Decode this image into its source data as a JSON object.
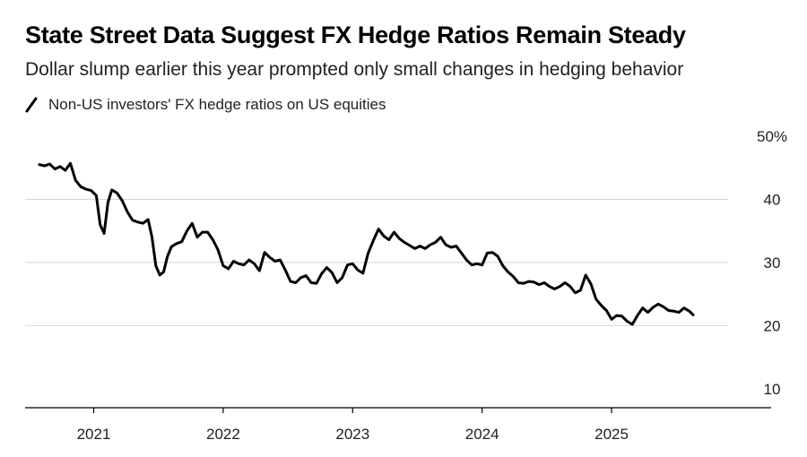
{
  "chart_data": {
    "type": "line",
    "title": "State Street Data Suggest FX Hedge Ratios Remain Steady",
    "subtitle": "Dollar slump earlier this year prompted only small changes in hedging behavior",
    "series": [
      {
        "name": "Non-US investors' FX hedge ratios on US equities",
        "color": "#000000",
        "points": [
          [
            2020.58,
            45.5
          ],
          [
            2020.62,
            45.3
          ],
          [
            2020.66,
            45.6
          ],
          [
            2020.7,
            44.8
          ],
          [
            2020.74,
            45.2
          ],
          [
            2020.78,
            44.6
          ],
          [
            2020.82,
            45.7
          ],
          [
            2020.86,
            43.0
          ],
          [
            2020.9,
            42.0
          ],
          [
            2020.94,
            41.6
          ],
          [
            2020.98,
            41.4
          ],
          [
            2021.02,
            40.6
          ],
          [
            2021.05,
            36.0
          ],
          [
            2021.08,
            34.6
          ],
          [
            2021.11,
            39.5
          ],
          [
            2021.14,
            41.5
          ],
          [
            2021.18,
            41.0
          ],
          [
            2021.22,
            39.8
          ],
          [
            2021.26,
            38.0
          ],
          [
            2021.3,
            36.7
          ],
          [
            2021.34,
            36.4
          ],
          [
            2021.38,
            36.2
          ],
          [
            2021.42,
            36.8
          ],
          [
            2021.45,
            34.0
          ],
          [
            2021.48,
            29.5
          ],
          [
            2021.51,
            28.0
          ],
          [
            2021.54,
            28.5
          ],
          [
            2021.57,
            31.0
          ],
          [
            2021.6,
            32.5
          ],
          [
            2021.64,
            33.0
          ],
          [
            2021.68,
            33.3
          ],
          [
            2021.72,
            35.0
          ],
          [
            2021.76,
            36.2
          ],
          [
            2021.8,
            34.0
          ],
          [
            2021.84,
            34.8
          ],
          [
            2021.88,
            34.8
          ],
          [
            2021.92,
            33.6
          ],
          [
            2021.96,
            32.0
          ],
          [
            2022.0,
            29.5
          ],
          [
            2022.04,
            29.0
          ],
          [
            2022.08,
            30.2
          ],
          [
            2022.12,
            29.8
          ],
          [
            2022.16,
            29.6
          ],
          [
            2022.2,
            30.4
          ],
          [
            2022.24,
            29.8
          ],
          [
            2022.28,
            28.7
          ],
          [
            2022.32,
            31.6
          ],
          [
            2022.36,
            30.8
          ],
          [
            2022.4,
            30.2
          ],
          [
            2022.44,
            30.4
          ],
          [
            2022.48,
            28.8
          ],
          [
            2022.52,
            27.0
          ],
          [
            2022.56,
            26.8
          ],
          [
            2022.6,
            27.6
          ],
          [
            2022.64,
            27.9
          ],
          [
            2022.68,
            26.8
          ],
          [
            2022.72,
            26.7
          ],
          [
            2022.76,
            28.2
          ],
          [
            2022.8,
            29.2
          ],
          [
            2022.84,
            28.4
          ],
          [
            2022.88,
            26.8
          ],
          [
            2022.92,
            27.6
          ],
          [
            2022.96,
            29.6
          ],
          [
            2023.0,
            29.8
          ],
          [
            2023.04,
            28.8
          ],
          [
            2023.08,
            28.3
          ],
          [
            2023.12,
            31.5
          ],
          [
            2023.16,
            33.5
          ],
          [
            2023.2,
            35.3
          ],
          [
            2023.24,
            34.2
          ],
          [
            2023.28,
            33.6
          ],
          [
            2023.32,
            34.8
          ],
          [
            2023.36,
            33.8
          ],
          [
            2023.4,
            33.2
          ],
          [
            2023.44,
            32.7
          ],
          [
            2023.48,
            32.2
          ],
          [
            2023.52,
            32.6
          ],
          [
            2023.56,
            32.2
          ],
          [
            2023.6,
            32.8
          ],
          [
            2023.64,
            33.2
          ],
          [
            2023.68,
            34.0
          ],
          [
            2023.72,
            32.8
          ],
          [
            2023.76,
            32.4
          ],
          [
            2023.8,
            32.6
          ],
          [
            2023.84,
            31.5
          ],
          [
            2023.88,
            30.4
          ],
          [
            2023.92,
            29.6
          ],
          [
            2023.96,
            29.8
          ],
          [
            2024.0,
            29.6
          ],
          [
            2024.04,
            31.5
          ],
          [
            2024.08,
            31.6
          ],
          [
            2024.12,
            31.0
          ],
          [
            2024.16,
            29.5
          ],
          [
            2024.2,
            28.5
          ],
          [
            2024.24,
            27.8
          ],
          [
            2024.28,
            26.8
          ],
          [
            2024.32,
            26.7
          ],
          [
            2024.36,
            27.0
          ],
          [
            2024.4,
            26.9
          ],
          [
            2024.44,
            26.5
          ],
          [
            2024.48,
            26.8
          ],
          [
            2024.52,
            26.2
          ],
          [
            2024.56,
            25.8
          ],
          [
            2024.6,
            26.2
          ],
          [
            2024.64,
            26.8
          ],
          [
            2024.68,
            26.2
          ],
          [
            2024.72,
            25.2
          ],
          [
            2024.76,
            25.6
          ],
          [
            2024.8,
            28.0
          ],
          [
            2024.84,
            26.6
          ],
          [
            2024.88,
            24.2
          ],
          [
            2024.92,
            23.2
          ],
          [
            2024.96,
            22.4
          ],
          [
            2025.0,
            21.0
          ],
          [
            2025.04,
            21.6
          ],
          [
            2025.08,
            21.5
          ],
          [
            2025.12,
            20.7
          ],
          [
            2025.16,
            20.2
          ],
          [
            2025.2,
            21.6
          ],
          [
            2025.24,
            22.8
          ],
          [
            2025.28,
            22.1
          ],
          [
            2025.32,
            22.9
          ],
          [
            2025.36,
            23.4
          ],
          [
            2025.4,
            23.0
          ],
          [
            2025.44,
            22.4
          ],
          [
            2025.48,
            22.3
          ],
          [
            2025.52,
            22.1
          ],
          [
            2025.56,
            22.8
          ],
          [
            2025.6,
            22.3
          ],
          [
            2025.63,
            21.7
          ]
        ]
      }
    ],
    "x_ticks": [
      {
        "value": 2021,
        "label": "2021"
      },
      {
        "value": 2022,
        "label": "2022"
      },
      {
        "value": 2023,
        "label": "2023"
      },
      {
        "value": 2024,
        "label": "2024"
      },
      {
        "value": 2025,
        "label": "2025"
      }
    ],
    "y_ticks": [
      {
        "value": 50,
        "label": "50%"
      },
      {
        "value": 40,
        "label": "40"
      },
      {
        "value": 30,
        "label": "30"
      },
      {
        "value": 20,
        "label": "20"
      },
      {
        "value": 10,
        "label": "10"
      }
    ],
    "xlim": [
      2020.47,
      2025.9
    ],
    "ylim": [
      7,
      50
    ],
    "gridlines": true,
    "legend_position": "top-left"
  }
}
